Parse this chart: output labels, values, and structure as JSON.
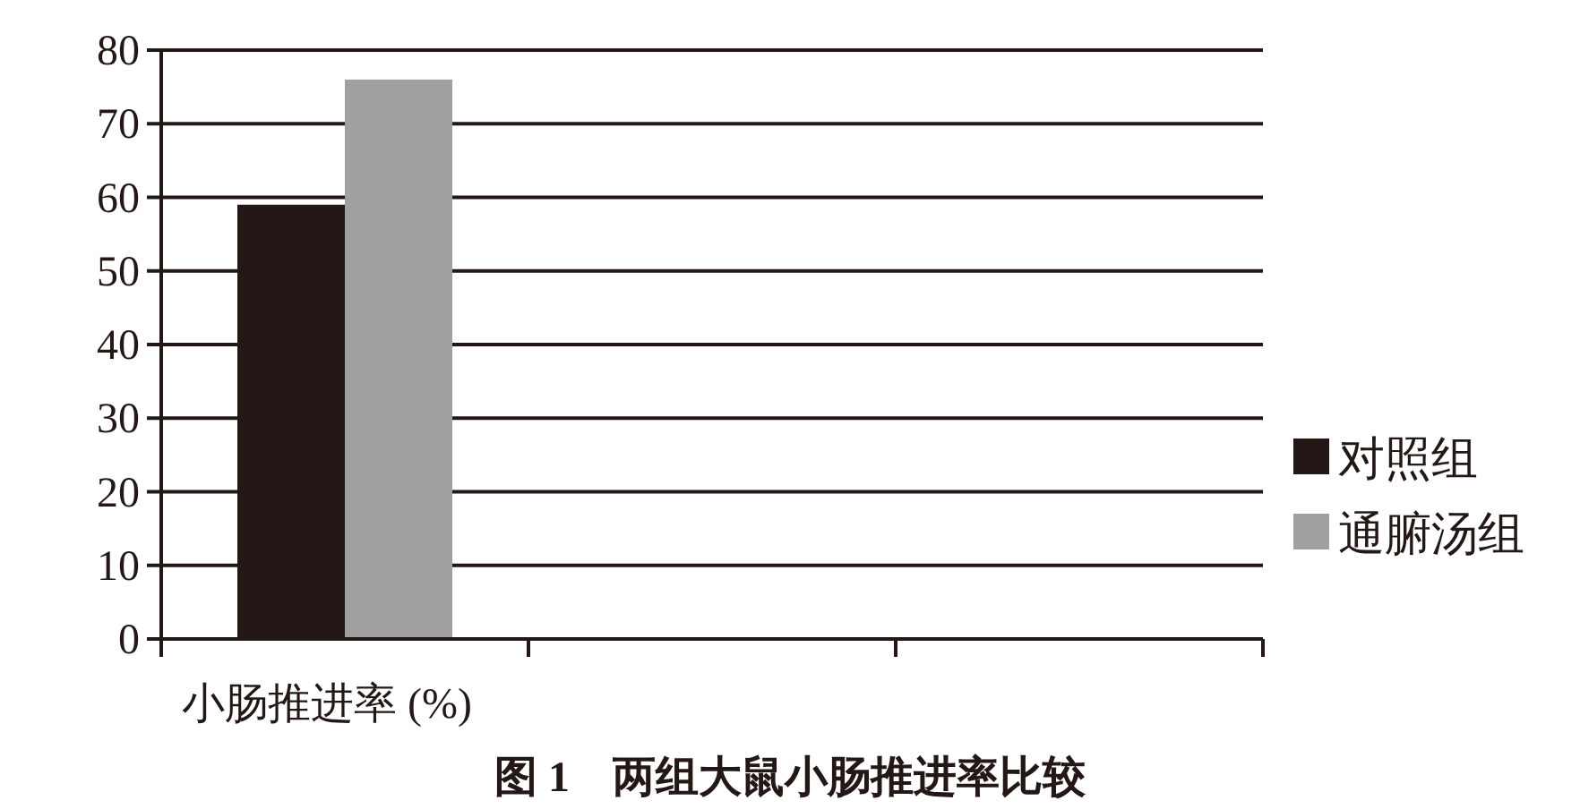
{
  "chart_data": {
    "type": "bar",
    "title": "图 1　两组大鼠小肠推进率比较",
    "categories": [
      "小肠推进率 (%)",
      null,
      null
    ],
    "series": [
      {
        "name": "对照组",
        "color": "#231815",
        "values": [
          59,
          null,
          null
        ]
      },
      {
        "name": "通腑汤组",
        "color": "#a0a0a0",
        "values": [
          76,
          null,
          null
        ]
      }
    ],
    "ylim": [
      0,
      80
    ],
    "yticks": [
      0,
      10,
      20,
      30,
      40,
      50,
      60,
      70,
      80
    ],
    "grid": "y",
    "legend": "right"
  }
}
